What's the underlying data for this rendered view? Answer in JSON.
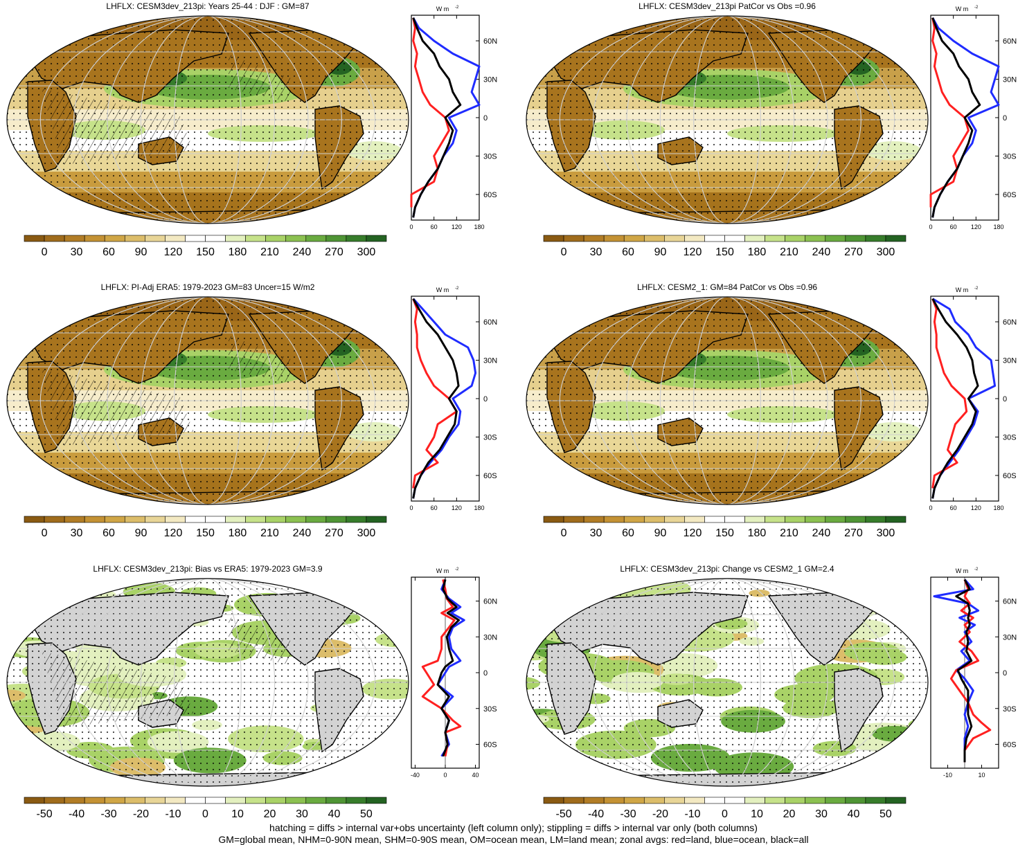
{
  "panels": [
    {
      "title": "LHFLX: CESM3dev_213pi: Years 25-44 : DJF : GM=87",
      "kind": "abs",
      "profile": "model",
      "xticks": [
        "0",
        "60",
        "120",
        "180"
      ],
      "xvals": [
        0,
        60,
        120,
        180
      ],
      "xmin": 0,
      "xmax": 180
    },
    {
      "title": "LHFLX: CESM3dev_213pi PatCor vs Obs =0.96",
      "kind": "abs",
      "profile": "model",
      "xticks": [
        "0",
        "60",
        "120",
        "180"
      ],
      "xvals": [
        0,
        60,
        120,
        180
      ],
      "xmin": 0,
      "xmax": 180
    },
    {
      "title": "LHFLX: PI-Adj ERA5: 1979-2023 GM=83 Uncer=15 W/m2",
      "kind": "abs",
      "profile": "obs",
      "xticks": [
        "0",
        "60",
        "120",
        "180"
      ],
      "xvals": [
        0,
        60,
        120,
        180
      ],
      "xmin": 0,
      "xmax": 180
    },
    {
      "title": "LHFLX: CESM2_1: GM=84 PatCor vs Obs =0.96",
      "kind": "abs",
      "profile": "cesm2",
      "xticks": [
        "0",
        "60",
        "120",
        "180"
      ],
      "xvals": [
        0,
        60,
        120,
        180
      ],
      "xmin": 0,
      "xmax": 180
    },
    {
      "title": "LHFLX: CESM3dev_213pi: Bias vs ERA5: 1979-2023 GM=3.9",
      "kind": "diff",
      "profile": "bias",
      "xticks": [
        "-40",
        "0",
        "40"
      ],
      "xvals": [
        -40,
        0,
        40
      ],
      "xmin": -45,
      "xmax": 45
    },
    {
      "title": "LHFLX: CESM3dev_213pi: Change vs CESM2_1 GM=2.4",
      "kind": "diff",
      "profile": "change",
      "xticks": [
        "-10",
        "10"
      ],
      "xvals": [
        -10,
        10
      ],
      "xmin": -20,
      "xmax": 20
    }
  ],
  "units_label": "W m",
  "units_exp": "-2",
  "lat_ticks": [
    "60N",
    "30N",
    "0",
    "30S",
    "60S"
  ],
  "lat_vals": [
    60,
    30,
    0,
    -30,
    -60
  ],
  "colorbar_abs": {
    "labels": [
      "0",
      "30",
      "60",
      "90",
      "120",
      "150",
      "180",
      "210",
      "240",
      "270",
      "300"
    ]
  },
  "colorbar_diff": {
    "labels": [
      "-50",
      "-40",
      "-30",
      "-20",
      "-10",
      "0",
      "10",
      "20",
      "30",
      "40",
      "50"
    ]
  },
  "footer": {
    "line1": "hatching = diffs > internal var+obs uncertainty (left column only); stippling = diffs > internal var only (both columns)",
    "line2": "GM=global mean, NHM=0-90N mean, SHM=0-90S mean, OM=ocean mean, LM=land mean; zonal avgs: red=land, blue=ocean, black=all"
  },
  "colors": {
    "abs_ramp": [
      "#8a5a12",
      "#a06c1c",
      "#b27d26",
      "#c49234",
      "#d0a646",
      "#dcbd6a",
      "#e8d597",
      "#f3e9c2",
      "#ffffff",
      "#ffffff",
      "#e3f0bf",
      "#c6e28a",
      "#a9d267",
      "#8cc151",
      "#6aab40",
      "#4f9535",
      "#377d2b",
      "#246322"
    ],
    "diff_ramp": [
      "#8a5a12",
      "#a06c1c",
      "#b27d26",
      "#c49234",
      "#d0a646",
      "#dcbd6a",
      "#e8d597",
      "#f3e9c2",
      "#ffffff",
      "#ffffff",
      "#e3f0bf",
      "#c6e28a",
      "#a9d267",
      "#8cc151",
      "#6aab40",
      "#4f9535",
      "#377d2b",
      "#246322"
    ],
    "land": "#a8741e",
    "red": "#ff2020",
    "blue": "#1f2cff",
    "black": "#000000"
  }
}
